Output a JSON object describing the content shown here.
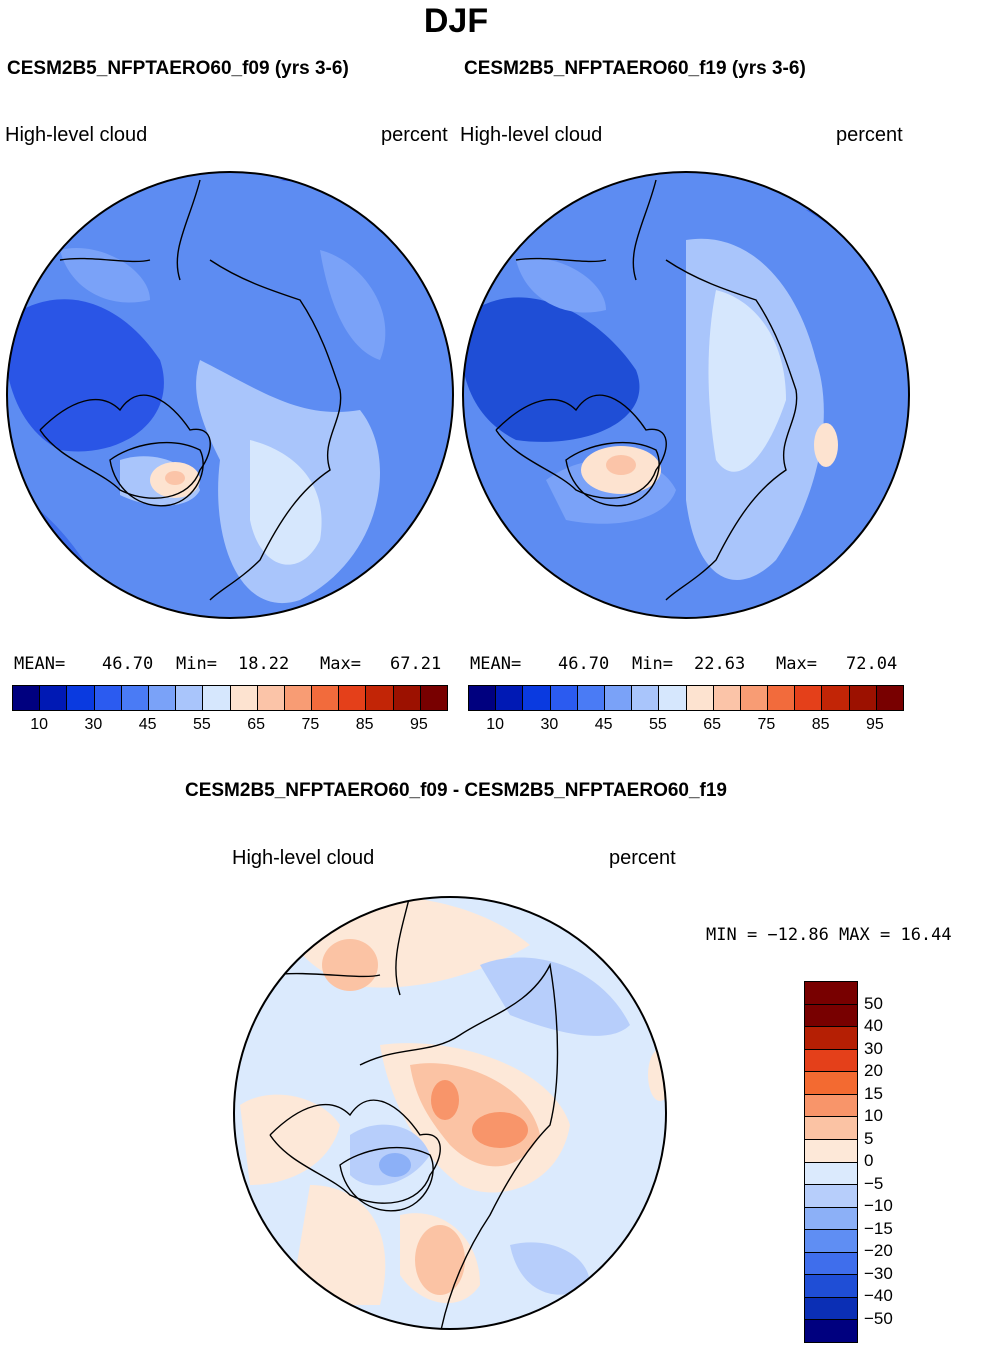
{
  "page": {
    "season": "DJF",
    "case1_title": "CESM2B5_NFPTAERO60_f09 (yrs 3-6)",
    "case2_title": "CESM2B5_NFPTAERO60_f19 (yrs 3-6)",
    "diff_title": "CESM2B5_NFPTAERO60_f09 - CESM2B5_NFPTAERO60_f19"
  },
  "panels": {
    "case1": {
      "variable": "High-level cloud",
      "units": "percent",
      "mean_label": "MEAN=",
      "mean": "46.70",
      "min_label": "Min=",
      "min": "18.22",
      "max_label": "Max=",
      "max": "67.21"
    },
    "case2": {
      "variable": "High-level cloud",
      "units": "percent",
      "mean_label": "MEAN=",
      "mean": "46.70",
      "min_label": "Min=",
      "min": "22.63",
      "max_label": "Max=",
      "max": "72.04"
    },
    "diff": {
      "variable": "High-level cloud",
      "units": "percent",
      "minmax": "MIN = −12.86  MAX =   16.44"
    }
  },
  "colorbars": {
    "field": {
      "colors": [
        "#00007f",
        "#0019b4",
        "#0a3ae0",
        "#2b5bf0",
        "#4a7bf5",
        "#7aa2f8",
        "#a9c5fb",
        "#d6e7fd",
        "#fde3d0",
        "#fbc4a8",
        "#f89c74",
        "#f26b3c",
        "#e4401a",
        "#c22506",
        "#9c1100",
        "#780000"
      ],
      "tick_labels": [
        "10",
        "30",
        "45",
        "55",
        "65",
        "75",
        "85",
        "95"
      ]
    },
    "diff": {
      "colors": [
        "#780000",
        "#b51f04",
        "#e4401a",
        "#f36a31",
        "#f8956a",
        "#fbc3a4",
        "#fde8d8",
        "#dbeafd",
        "#b7cefb",
        "#8cb0f7",
        "#5f8ef3",
        "#3f6eec",
        "#1f4ed6",
        "#0b2fb5",
        "#00007f"
      ],
      "tick_labels": [
        "50",
        "40",
        "30",
        "20",
        "15",
        "10",
        "5",
        "0",
        "−5",
        "−10",
        "−15",
        "−20",
        "−30",
        "−40",
        "−50"
      ]
    }
  }
}
